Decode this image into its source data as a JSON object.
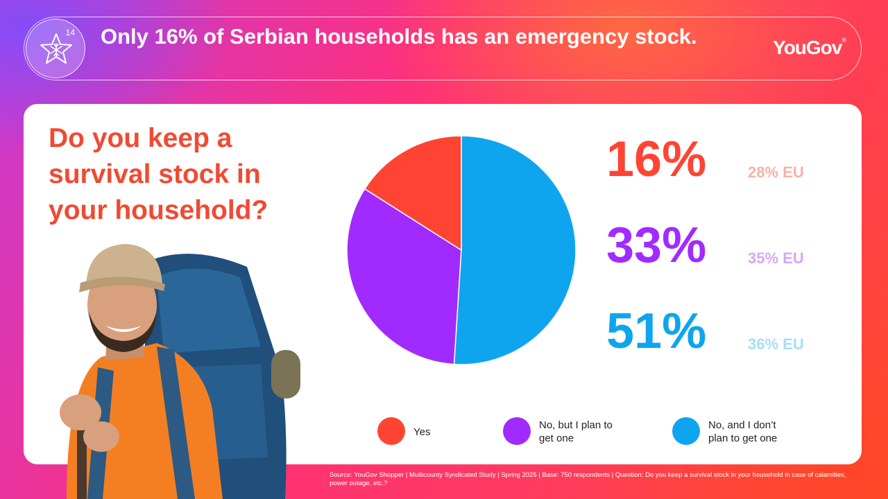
{
  "header": {
    "badge_number": "14",
    "title": "Only 16% of Serbian households has an emergency stock.",
    "logo": "YouGov"
  },
  "question": "Do you keep a survival stock in your household?",
  "chart_data": {
    "type": "pie",
    "categories": [
      "Yes",
      "No, but I plan to get one",
      "No, and I don’t plan to get one"
    ],
    "values": [
      16,
      33,
      51
    ],
    "colors": [
      "#ff4433",
      "#a12bff",
      "#0ea5ee"
    ],
    "data_labels": [
      "16%",
      "33%",
      "51%"
    ],
    "eu_labels": [
      "28% EU",
      "35% EU",
      "36% EU"
    ],
    "eu_values": [
      28,
      35,
      36
    ],
    "legend_position": "bottom"
  },
  "eu_colors": [
    "#f7b1a6",
    "#d6a6f5",
    "#a6dff5"
  ],
  "source": "Source: YouGov Shopper | Multicounty Syndicated Study | Spring 2025 | Base: 750 respondents | Question: Do you keep a survival stock in your household in case of calamities, power outage, etc.?"
}
